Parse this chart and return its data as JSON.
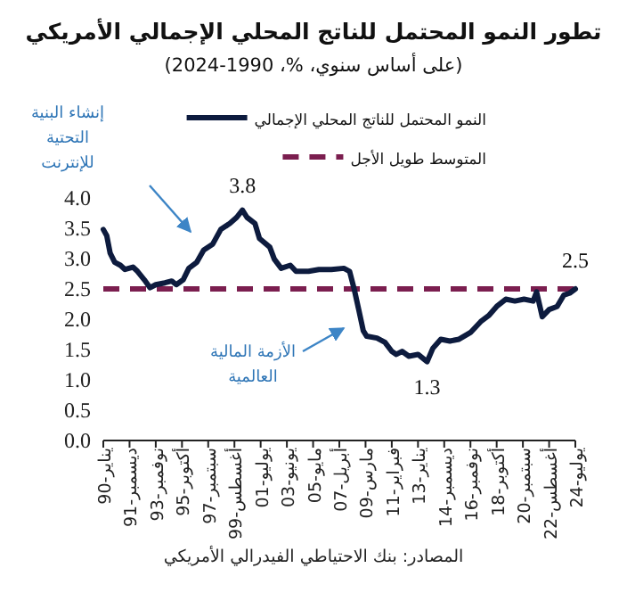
{
  "chart_data": {
    "type": "line",
    "title": "تطور النمو المحتمل للناتج المحلي الإجمالي الأمريكي",
    "subtitle": "(على أساس سنوي، %، 1990-2024)",
    "x": [
      "1990-01",
      "1990-04",
      "1990-07",
      "1990-11",
      "1991-04",
      "1991-08",
      "1992-03",
      "1992-07",
      "1993-01",
      "1993-06",
      "1993-11",
      "1994-07",
      "1995-01",
      "1995-05",
      "1995-11",
      "1996-04",
      "1996-11",
      "1997-05",
      "1998-01",
      "1998-08",
      "1999-04",
      "1999-10",
      "2000-03",
      "2000-07",
      "2001-02",
      "2001-06",
      "2002-03",
      "2002-07",
      "2003-01",
      "2003-09",
      "2004-02",
      "2005-01",
      "2005-10",
      "2006-09",
      "2007-08",
      "2008-01",
      "2008-05",
      "2008-09",
      "2009-01",
      "2009-04",
      "2010-01",
      "2010-08",
      "2011-02",
      "2011-06",
      "2011-11",
      "2012-05",
      "2013-01",
      "2013-09",
      "2014-02",
      "2014-09",
      "2015-05",
      "2016-01",
      "2016-11",
      "2017-08",
      "2018-03",
      "2018-10",
      "2019-06",
      "2020-02",
      "2020-10",
      "2021-06",
      "2021-09",
      "2022-02",
      "2022-08",
      "2023-03",
      "2023-09",
      "2024-02",
      "2024-07"
    ],
    "series": [
      {
        "name": "النمو المحتمل للناتج المحلي الإجمالي",
        "color": "#0d1b3e",
        "values": [
          3.48,
          3.38,
          3.09,
          2.94,
          2.89,
          2.82,
          2.86,
          2.79,
          2.65,
          2.52,
          2.57,
          2.6,
          2.63,
          2.57,
          2.65,
          2.84,
          2.94,
          3.14,
          3.24,
          3.48,
          3.58,
          3.68,
          3.8,
          3.68,
          3.58,
          3.33,
          3.19,
          2.99,
          2.84,
          2.89,
          2.79,
          2.79,
          2.82,
          2.82,
          2.84,
          2.79,
          2.5,
          2.16,
          1.81,
          1.72,
          1.69,
          1.62,
          1.47,
          1.42,
          1.47,
          1.39,
          1.42,
          1.3,
          1.52,
          1.67,
          1.64,
          1.67,
          1.78,
          1.96,
          2.06,
          2.21,
          2.33,
          2.3,
          2.33,
          2.3,
          2.45,
          2.04,
          2.16,
          2.21,
          2.4,
          2.43,
          2.5
        ]
      }
    ],
    "ref_lines": [
      {
        "axis": "y",
        "value": 2.5,
        "label": "المتوسط طويل الأجل",
        "color": "#7b1e4f",
        "line_style": "dashed"
      }
    ],
    "xlim": [
      "1990-01",
      "2024-07"
    ],
    "xticks": [
      {
        "value": "1990-01",
        "label": "يناير-90"
      },
      {
        "value": "1991-12",
        "label": "ديسمبر-91"
      },
      {
        "value": "1993-11",
        "label": "نوفمبر-93"
      },
      {
        "value": "1995-10",
        "label": "أكتوبر-95"
      },
      {
        "value": "1997-09",
        "label": "سبتمبر-97"
      },
      {
        "value": "1999-08",
        "label": "أغسطس-99"
      },
      {
        "value": "2001-07",
        "label": "يوليو-01"
      },
      {
        "value": "2003-06",
        "label": "يونيو-03"
      },
      {
        "value": "2005-05",
        "label": "مايو-05"
      },
      {
        "value": "2007-04",
        "label": "أبريل-07"
      },
      {
        "value": "2009-03",
        "label": "مارس-09"
      },
      {
        "value": "2011-02",
        "label": "فبراير-11"
      },
      {
        "value": "2013-01",
        "label": "يناير-13"
      },
      {
        "value": "2014-12",
        "label": "ديسمبر-14"
      },
      {
        "value": "2016-11",
        "label": "نوفمبر-16"
      },
      {
        "value": "2018-10",
        "label": "أكتوبر-18"
      },
      {
        "value": "2020-09",
        "label": "سبتمبر-20"
      },
      {
        "value": "2022-08",
        "label": "أغسطس-22"
      },
      {
        "value": "2024-07",
        "label": "يوليو-24"
      }
    ],
    "ylim": [
      0,
      4
    ],
    "yticks": [
      {
        "value": 0,
        "label": "0.0"
      },
      {
        "value": 0.5,
        "label": "0.5"
      },
      {
        "value": 1,
        "label": "1.0"
      },
      {
        "value": 1.5,
        "label": "1.5"
      },
      {
        "value": 2,
        "label": "2.0"
      },
      {
        "value": 2.5,
        "label": "2.5"
      },
      {
        "value": 3,
        "label": "3.0"
      },
      {
        "value": 3.5,
        "label": "3.5"
      },
      {
        "value": 4,
        "label": "4.0"
      }
    ],
    "grid": false,
    "legend": "top right",
    "annotations": [
      {
        "text": "3.8",
        "x": "2000-03",
        "y": 3.8
      },
      {
        "text": "1.3",
        "x": "2013-09",
        "y": 1.3
      },
      {
        "text": "2.5",
        "x": "2024-07",
        "y": 2.5
      },
      "إنشاء البنية التحتية للإنترنت",
      "الأزمة المالية العالمية",
      "المصادر: بنك الاحتياطي الفيدرالي الأمريكي"
    ]
  }
}
